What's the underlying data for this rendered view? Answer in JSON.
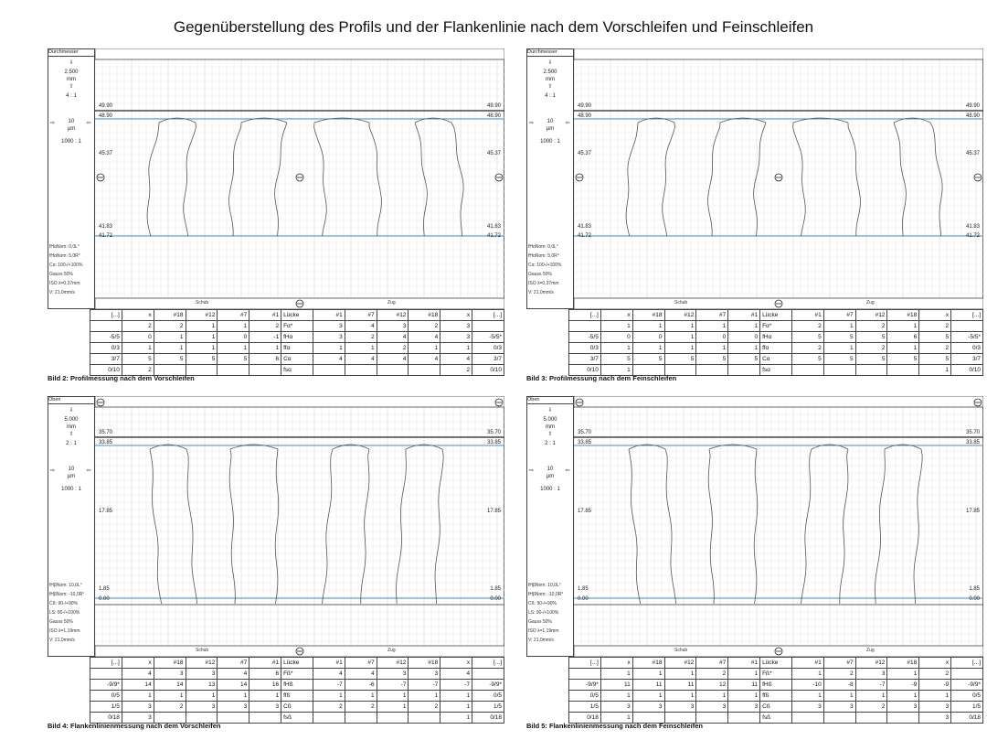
{
  "title": "Gegenüberstellung des Profils und der Flankenlinie nach dem Vorschleifen und Feinschleifen",
  "panels": [
    {
      "caption": "Bild 2: Profilmessung nach dem Vorschleifen",
      "header": "Durchmesser",
      "scale_top": "2.500",
      "scale_top_unit": "mm",
      "ratio_top": "4 : 1",
      "scale_mid": "10",
      "scale_mid_unit": "µm",
      "ratio_mid": "1000 : 1",
      "params": [
        "fHαNom: 0,0L°",
        "fHαNom: 5,0R°",
        "Cα: 100-/+100%",
        "Gauss 50%",
        "ISO λ=0,37mm",
        "V: 21,0mm/s"
      ],
      "levels": {
        "top1": "49.90",
        "top2": "48.90",
        "mid": "45.37",
        "bot1": "41.83",
        "bot2": "41.72"
      },
      "footer": {
        "left": "Schub",
        "right": "Zug"
      },
      "table": {
        "header": [
          "[...]",
          "x",
          "#18",
          "#12",
          "#7",
          "#1",
          "Lücke",
          "#1",
          "#7",
          "#12",
          "#18",
          "x",
          "[...]"
        ],
        "rows": [
          [
            "",
            "2",
            "2",
            "1",
            "1",
            "2",
            "Fα*",
            "3",
            "4",
            "3",
            "2",
            "3",
            ""
          ],
          [
            "-5/5",
            "0",
            "1",
            "1",
            "0",
            "-1",
            "fHα",
            "3",
            "2",
            "4",
            "4",
            "3",
            "-5/5*"
          ],
          [
            "0/3",
            "1",
            "1",
            "1",
            "1",
            "1",
            "ffα",
            "1",
            "1",
            "2",
            "1",
            "1",
            "0/3"
          ],
          [
            "3/7",
            "5",
            "5",
            "5",
            "5",
            "6",
            "Cα",
            "4",
            "4",
            "4",
            "4",
            "4",
            "3/7"
          ],
          [
            "0/10",
            "2",
            "",
            "",
            "",
            "",
            "fsα",
            "",
            "",
            "",
            "",
            "2",
            "0/10"
          ]
        ]
      }
    },
    {
      "caption": "Bild 3: Profilmessung nach dem Feinschleifen",
      "header": "Durchmesser",
      "scale_top": "2.500",
      "scale_top_unit": "mm",
      "ratio_top": "4 : 1",
      "scale_mid": "10",
      "scale_mid_unit": "µm",
      "ratio_mid": "1000 : 1",
      "params": [
        "fHαNom: 0,0L°",
        "fHαNom: 5,0R°",
        "Cα: 100-/+100%",
        "Gauss 50%",
        "ISO λ=0,37mm",
        "V: 21,0mm/s"
      ],
      "levels": {
        "top1": "49.90",
        "top2": "48.90",
        "mid": "45.37",
        "bot1": "41.83",
        "bot2": "41.72"
      },
      "footer": {
        "left": "Schub",
        "right": "Zug"
      },
      "table": {
        "header": [
          "[...]",
          "x",
          "#18",
          "#12",
          "#7",
          "#1",
          "Lücke",
          "#1",
          "#7",
          "#12",
          "#18",
          "x",
          "[...]"
        ],
        "rows": [
          [
            "",
            "1",
            "1",
            "1",
            "1",
            "1",
            "Fα*",
            "2",
            "1",
            "2",
            "1",
            "2",
            ""
          ],
          [
            "-5/5",
            "0",
            "0",
            "1",
            "0",
            "0",
            "fHα",
            "5",
            "5",
            "5",
            "6",
            "5",
            "-5/5*"
          ],
          [
            "0/3",
            "1",
            "1",
            "1",
            "1",
            "1",
            "ffα",
            "2",
            "1",
            "2",
            "1",
            "2",
            "0/3"
          ],
          [
            "3/7",
            "5",
            "5",
            "5",
            "5",
            "5",
            "Cα",
            "5",
            "5",
            "5",
            "5",
            "5",
            "3/7"
          ],
          [
            "0/10",
            "1",
            "",
            "",
            "",
            "",
            "fsα",
            "",
            "",
            "",
            "",
            "1",
            "0/10"
          ]
        ]
      }
    },
    {
      "caption": "Bild 4: Flankenlinienmessung nach dem Vorschleifen",
      "header": "Oben",
      "scale_top": "5.000",
      "scale_top_unit": "mm",
      "ratio_top": "2 : 1",
      "scale_mid": "10",
      "scale_mid_unit": "µm",
      "ratio_mid": "1000 : 1",
      "params": [
        "fHβNom: 10,0L°",
        "fHβNom: -10,0R°",
        "Cß: 90-/+90%",
        "LS: 90-/+100%",
        "Gauss 50%",
        "ISO λ=1,19mm",
        "V: 21,0mm/s"
      ],
      "levels": {
        "top1": "35.70",
        "top2": "33.85",
        "mid": "17.85",
        "bot1": "1.85",
        "bot2": "0.00"
      },
      "footer": {
        "left": "Schub",
        "right": "Zug"
      },
      "table": {
        "header": [
          "[...]",
          "x",
          "#18",
          "#12",
          "#7",
          "#1",
          "Lücke",
          "#1",
          "#7",
          "#12",
          "#18",
          "x",
          "[...]"
        ],
        "rows": [
          [
            "",
            "4",
            "3",
            "3",
            "4",
            "6",
            "Fß*",
            "4",
            "4",
            "3",
            "3",
            "4",
            ""
          ],
          [
            "-9/9*",
            "14",
            "14",
            "13",
            "14",
            "16",
            "fHß",
            "-7",
            "-6",
            "-7",
            "-7",
            "-7",
            "-9/9*"
          ],
          [
            "0/5",
            "1",
            "1",
            "1",
            "1",
            "1",
            "ffß",
            "1",
            "1",
            "1",
            "1",
            "1",
            "0/5"
          ],
          [
            "1/5",
            "3",
            "2",
            "3",
            "3",
            "3",
            "Cß",
            "2",
            "2",
            "1",
            "2",
            "1",
            "1/5"
          ],
          [
            "0/18",
            "3",
            "",
            "",
            "",
            "",
            "fsß",
            "",
            "",
            "",
            "",
            "1",
            "0/18"
          ]
        ]
      }
    },
    {
      "caption": "Bild 5: Flankenlinienmessung nach dem Feinschleifen",
      "header": "Oben",
      "scale_top": "5.000",
      "scale_top_unit": "mm",
      "ratio_top": "2 : 1",
      "scale_mid": "10",
      "scale_mid_unit": "µm",
      "ratio_mid": "1000 : 1",
      "params": [
        "fHβNom: 10,0L°",
        "fHβNom: -10,0R°",
        "Cß: 90-/+90%",
        "LS: 90-/+100%",
        "Gauss 50%",
        "ISO λ=1,19mm",
        "V: 21,0mm/s"
      ],
      "levels": {
        "top1": "35.70",
        "top2": "33.85",
        "mid": "17.85",
        "bot1": "1.85",
        "bot2": "0.00"
      },
      "footer": {
        "left": "Schub",
        "right": "Zug"
      },
      "table": {
        "header": [
          "[...]",
          "x",
          "#18",
          "#12",
          "#7",
          "#1",
          "Lücke",
          "#1",
          "#7",
          "#12",
          "#18",
          "x",
          "[...]"
        ],
        "rows": [
          [
            "",
            "1",
            "1",
            "1",
            "2",
            "1",
            "Fß*",
            "1",
            "2",
            "3",
            "1",
            "2",
            ""
          ],
          [
            "-9/9*",
            "11",
            "11",
            "11",
            "12",
            "11",
            "fHß",
            "-10",
            "-8",
            "-7",
            "-9",
            "-9",
            "-9/9*"
          ],
          [
            "0/5",
            "1",
            "1",
            "1",
            "1",
            "1",
            "ffß",
            "1",
            "1",
            "1",
            "1",
            "1",
            "0/5"
          ],
          [
            "1/5",
            "3",
            "3",
            "3",
            "3",
            "3",
            "Cß",
            "3",
            "3",
            "2",
            "3",
            "3",
            "1/5"
          ],
          [
            "0/18",
            "1",
            "",
            "",
            "",
            "",
            "fsß",
            "",
            "",
            "",
            "",
            "3",
            "0/18"
          ]
        ]
      }
    }
  ]
}
